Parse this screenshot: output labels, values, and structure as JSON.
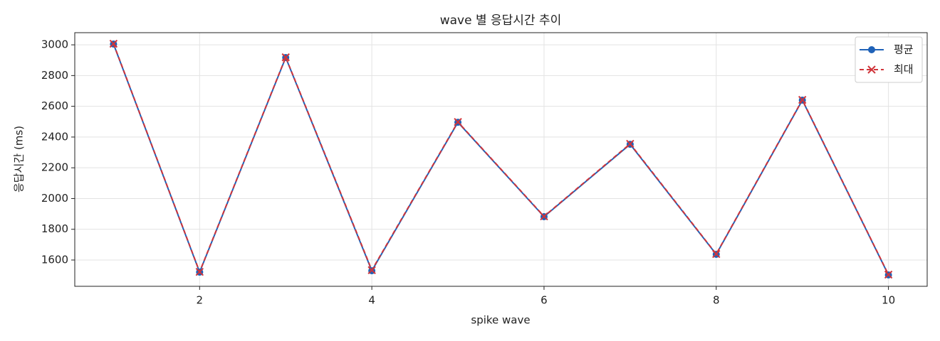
{
  "chart_data": {
    "type": "line",
    "title": "wave 별 응답시간 추이",
    "xlabel": "spike wave",
    "ylabel": "응답시간 (ms)",
    "x": [
      1,
      2,
      3,
      4,
      5,
      6,
      7,
      8,
      9,
      10
    ],
    "series": [
      {
        "name": "평균",
        "color": "#1f62b8",
        "marker": "o",
        "linestyle": "solid",
        "values": [
          3005,
          1521,
          2917,
          1530,
          2496,
          1882,
          2353,
          1637,
          2640,
          1503
        ]
      },
      {
        "name": "최대",
        "color": "#d0343a",
        "marker": "x",
        "linestyle": "dashed",
        "values": [
          3007,
          1523,
          2919,
          1534,
          2498,
          1884,
          2356,
          1639,
          2642,
          1505
        ]
      }
    ],
    "xlim": [
      0.55,
      10.45
    ],
    "xticks": [
      2,
      4,
      6,
      8,
      10
    ],
    "ylim": [
      1429,
      3079
    ],
    "yticks": [
      1600,
      1800,
      2000,
      2200,
      2400,
      2600,
      2800,
      3000
    ],
    "grid": true,
    "legend": "upper right"
  }
}
